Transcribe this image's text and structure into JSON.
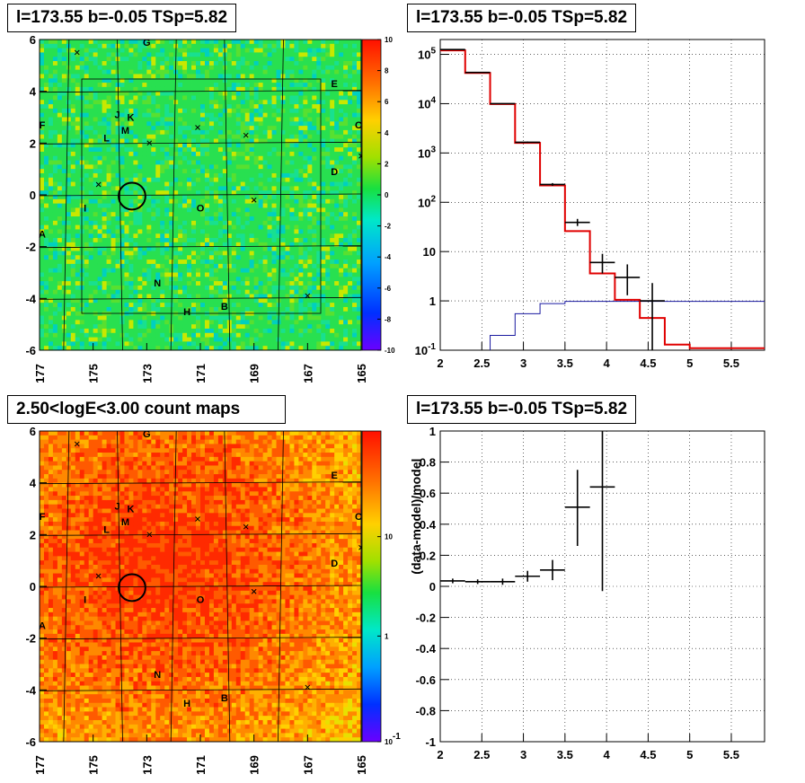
{
  "panels": {
    "map_top_title": "l=173.55 b=-0.05 TSp=5.82",
    "spectrum_title": "l=173.55 b=-0.05 TSp=5.82",
    "map_bottom_title": "2.50<logE<3.00 count maps",
    "residual_title": "l=173.55 b=-0.05 TSp=5.82"
  },
  "colors": {
    "model_line": "#e00000",
    "background_line": "#1a1aa0",
    "data_points": "#000000"
  },
  "chart_data": [
    {
      "type": "heatmap",
      "title": "l=173.55 b=-0.05 TSp=5.82",
      "xticks": [
        "177",
        "175",
        "173",
        "171",
        "169",
        "167",
        "165"
      ],
      "yticks": [
        "6",
        "4",
        "2",
        "0",
        "-2",
        "-4",
        "-6"
      ],
      "xlim": [
        177,
        165
      ],
      "ylim": [
        -6,
        6
      ],
      "colorbar_ticks": [
        "10",
        "8",
        "6",
        "4",
        "2",
        "0",
        "-2",
        "-4",
        "-6",
        "-8",
        "-10"
      ],
      "colorbar_range": [
        -10,
        10
      ],
      "source_labels": [
        {
          "text": "G",
          "l": 173.0,
          "b": 5.9
        },
        {
          "text": "E",
          "l": 166.0,
          "b": 4.3
        },
        {
          "text": "F",
          "l": 176.9,
          "b": 2.7
        },
        {
          "text": "C",
          "l": 165.1,
          "b": 2.7
        },
        {
          "text": "J",
          "l": 174.1,
          "b": 3.1
        },
        {
          "text": "K",
          "l": 173.6,
          "b": 3.0
        },
        {
          "text": "M",
          "l": 173.8,
          "b": 2.5
        },
        {
          "text": "L",
          "l": 174.5,
          "b": 2.2
        },
        {
          "text": "D",
          "l": 166.0,
          "b": 0.9
        },
        {
          "text": "I",
          "l": 175.3,
          "b": -0.5
        },
        {
          "text": "O",
          "l": 171.0,
          "b": -0.5
        },
        {
          "text": "A",
          "l": 176.9,
          "b": -1.5
        },
        {
          "text": "N",
          "l": 172.6,
          "b": -3.4
        },
        {
          "text": "H",
          "l": 171.5,
          "b": -4.5
        },
        {
          "text": "B",
          "l": 170.1,
          "b": -4.3
        }
      ],
      "crosses": [
        {
          "l": 175.6,
          "b": 5.5
        },
        {
          "l": 171.1,
          "b": 2.6
        },
        {
          "l": 169.3,
          "b": 2.3
        },
        {
          "l": 172.9,
          "b": 2.0
        },
        {
          "l": 174.8,
          "b": 0.4
        },
        {
          "l": 169.0,
          "b": -0.2
        },
        {
          "l": 167.0,
          "b": -3.9
        },
        {
          "l": 165.0,
          "b": 1.5
        }
      ],
      "source_marker": {
        "l": 173.55,
        "b": -0.05,
        "radius_deg": 0.5
      }
    },
    {
      "type": "line",
      "title": "l=173.55 b=-0.05 TSp=5.82",
      "yscale": "log",
      "xlim": [
        2,
        5.9
      ],
      "ylim": [
        0.1,
        200000
      ],
      "xticks": [
        "2",
        "2.5",
        "3",
        "3.5",
        "4",
        "4.5",
        "5",
        "5.5"
      ],
      "yticks": [
        "10^5",
        "10^4",
        "10^3",
        "10^2",
        "10",
        "1",
        "10^-1"
      ],
      "model_step": {
        "edges": [
          2.0,
          2.3,
          2.6,
          2.9,
          3.2,
          3.5,
          3.8,
          4.1,
          4.4,
          4.7,
          5.0,
          5.9
        ],
        "values": [
          120000,
          42000,
          9800,
          1600,
          220,
          26,
          3.6,
          1.05,
          0.45,
          0.13,
          0.11
        ]
      },
      "background_step": {
        "edges": [
          2.6,
          2.9,
          3.2,
          3.5,
          5.9
        ],
        "values": [
          0.2,
          0.55,
          0.88,
          0.98
        ]
      },
      "data_points": [
        {
          "x": 2.15,
          "xerr": 0.15,
          "y": 125000,
          "ylo": 124000,
          "yhi": 126000
        },
        {
          "x": 2.45,
          "xerr": 0.15,
          "y": 43000,
          "ylo": 42500,
          "yhi": 43500
        },
        {
          "x": 2.75,
          "xerr": 0.15,
          "y": 10000,
          "ylo": 9800,
          "yhi": 10200
        },
        {
          "x": 3.05,
          "xerr": 0.15,
          "y": 1650,
          "ylo": 1600,
          "yhi": 1700
        },
        {
          "x": 3.35,
          "xerr": 0.15,
          "y": 230,
          "ylo": 215,
          "yhi": 245
        },
        {
          "x": 3.65,
          "xerr": 0.15,
          "y": 39,
          "ylo": 33,
          "yhi": 46
        },
        {
          "x": 3.95,
          "xerr": 0.15,
          "y": 6,
          "ylo": 3.6,
          "yhi": 9
        },
        {
          "x": 4.25,
          "xerr": 0.15,
          "y": 3,
          "ylo": 1.3,
          "yhi": 5.5
        },
        {
          "x": 4.55,
          "xerr": 0.15,
          "y": 1,
          "ylo": 0.1,
          "yhi": 2.3
        }
      ],
      "grid": true
    },
    {
      "type": "heatmap",
      "title": "2.50<logE<3.00 count maps",
      "xticks": [
        "177",
        "175",
        "173",
        "171",
        "169",
        "167",
        "165"
      ],
      "yticks": [
        "6",
        "4",
        "2",
        "0",
        "-2",
        "-4",
        "-6"
      ],
      "xlim": [
        177,
        165
      ],
      "ylim": [
        -6,
        6
      ],
      "colorbar_scale": "log",
      "colorbar_ticks": [
        "10",
        "1",
        "10^-1"
      ],
      "source_labels": [
        {
          "text": "G",
          "l": 173.0,
          "b": 5.9
        },
        {
          "text": "E",
          "l": 166.0,
          "b": 4.3
        },
        {
          "text": "F",
          "l": 176.9,
          "b": 2.7
        },
        {
          "text": "C",
          "l": 165.1,
          "b": 2.7
        },
        {
          "text": "J",
          "l": 174.1,
          "b": 3.1
        },
        {
          "text": "K",
          "l": 173.6,
          "b": 3.0
        },
        {
          "text": "M",
          "l": 173.8,
          "b": 2.5
        },
        {
          "text": "L",
          "l": 174.5,
          "b": 2.2
        },
        {
          "text": "D",
          "l": 166.0,
          "b": 0.9
        },
        {
          "text": "I",
          "l": 175.3,
          "b": -0.5
        },
        {
          "text": "O",
          "l": 171.0,
          "b": -0.5
        },
        {
          "text": "A",
          "l": 176.9,
          "b": -1.5
        },
        {
          "text": "N",
          "l": 172.6,
          "b": -3.4
        },
        {
          "text": "H",
          "l": 171.5,
          "b": -4.5
        },
        {
          "text": "B",
          "l": 170.1,
          "b": -4.3
        }
      ],
      "crosses": [
        {
          "l": 175.6,
          "b": 5.5
        },
        {
          "l": 171.1,
          "b": 2.6
        },
        {
          "l": 169.3,
          "b": 2.3
        },
        {
          "l": 172.9,
          "b": 2.0
        },
        {
          "l": 174.8,
          "b": 0.4
        },
        {
          "l": 169.0,
          "b": -0.2
        },
        {
          "l": 167.0,
          "b": -3.9
        },
        {
          "l": 165.0,
          "b": 1.5
        }
      ],
      "source_marker": {
        "l": 173.55,
        "b": -0.05,
        "radius_deg": 0.5
      }
    },
    {
      "type": "scatter",
      "title": "l=173.55 b=-0.05 TSp=5.82",
      "ylabel": "(data-model)/model",
      "xlim": [
        2,
        5.9
      ],
      "ylim": [
        -1,
        1
      ],
      "xticks": [
        "2",
        "2.5",
        "3",
        "3.5",
        "4",
        "4.5",
        "5",
        "5.5"
      ],
      "yticks": [
        "1",
        "0.8",
        "0.6",
        "0.4",
        "0.2",
        "0",
        "-0.2",
        "-0.4",
        "-0.6",
        "-0.8",
        "-1"
      ],
      "points": [
        {
          "x": 2.15,
          "xerr": 0.15,
          "y": 0.035,
          "ylo": 0.02,
          "yhi": 0.05
        },
        {
          "x": 2.45,
          "xerr": 0.15,
          "y": 0.03,
          "ylo": 0.015,
          "yhi": 0.045
        },
        {
          "x": 2.75,
          "xerr": 0.15,
          "y": 0.03,
          "ylo": 0.01,
          "yhi": 0.05
        },
        {
          "x": 3.05,
          "xerr": 0.15,
          "y": 0.065,
          "ylo": 0.03,
          "yhi": 0.1
        },
        {
          "x": 3.35,
          "xerr": 0.15,
          "y": 0.105,
          "ylo": 0.04,
          "yhi": 0.17
        },
        {
          "x": 3.65,
          "xerr": 0.15,
          "y": 0.51,
          "ylo": 0.26,
          "yhi": 0.75
        },
        {
          "x": 3.95,
          "xerr": 0.15,
          "y": 0.64,
          "ylo": -0.03,
          "yhi": 1.0
        }
      ],
      "grid": true
    }
  ]
}
